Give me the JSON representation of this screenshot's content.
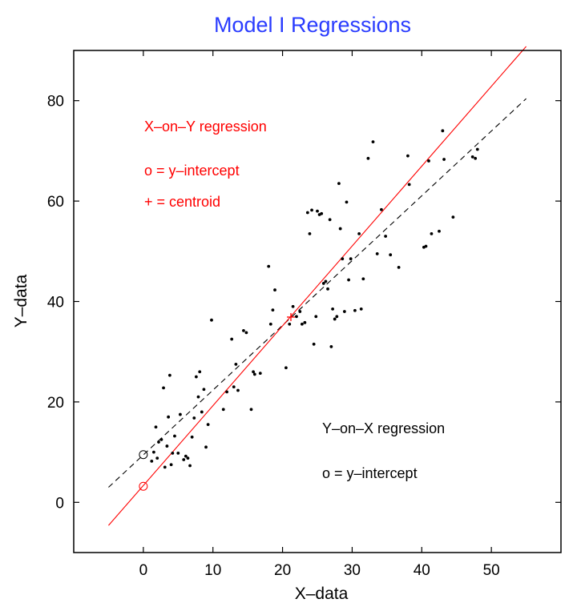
{
  "chart_data": {
    "type": "scatter",
    "title": "Model I Regressions",
    "xlabel": "X–data",
    "ylabel": "Y–data",
    "xlim": [
      -10,
      60
    ],
    "ylim": [
      -10,
      90
    ],
    "xticks": [
      0,
      10,
      20,
      30,
      40,
      50
    ],
    "yticks": [
      0,
      20,
      40,
      60,
      80
    ],
    "grid": false,
    "colors": {
      "title": "#2a3cff",
      "x_on_y": "#ff0000",
      "y_on_x": "#000000",
      "points": "#000000"
    },
    "points": [
      [
        1.2,
        8.2
      ],
      [
        1.5,
        10.0
      ],
      [
        1.8,
        15.0
      ],
      [
        2.0,
        8.8
      ],
      [
        2.2,
        12.0
      ],
      [
        2.6,
        12.5
      ],
      [
        2.9,
        22.8
      ],
      [
        3.1,
        7.0
      ],
      [
        3.4,
        11.2
      ],
      [
        3.6,
        17.0
      ],
      [
        3.8,
        25.3
      ],
      [
        4.0,
        7.5
      ],
      [
        4.2,
        9.8
      ],
      [
        4.5,
        13.2
      ],
      [
        5.0,
        9.8
      ],
      [
        5.3,
        17.5
      ],
      [
        5.8,
        8.5
      ],
      [
        6.1,
        9.2
      ],
      [
        6.4,
        8.8
      ],
      [
        6.7,
        7.3
      ],
      [
        7.0,
        13.0
      ],
      [
        7.3,
        16.8
      ],
      [
        7.6,
        25.0
      ],
      [
        7.9,
        21.0
      ],
      [
        8.1,
        26.0
      ],
      [
        8.4,
        18.0
      ],
      [
        8.7,
        22.5
      ],
      [
        9.0,
        11.0
      ],
      [
        9.3,
        15.5
      ],
      [
        9.8,
        36.3
      ],
      [
        11.5,
        18.5
      ],
      [
        12.0,
        22.0
      ],
      [
        12.7,
        32.5
      ],
      [
        13.0,
        23.0
      ],
      [
        13.3,
        27.5
      ],
      [
        13.6,
        22.3
      ],
      [
        14.4,
        34.2
      ],
      [
        14.8,
        33.8
      ],
      [
        15.5,
        18.5
      ],
      [
        15.8,
        26.0
      ],
      [
        16.0,
        25.5
      ],
      [
        16.8,
        25.7
      ],
      [
        18.0,
        47.0
      ],
      [
        18.3,
        35.5
      ],
      [
        18.6,
        38.3
      ],
      [
        18.9,
        42.3
      ],
      [
        20.5,
        26.8
      ],
      [
        21.0,
        35.5
      ],
      [
        21.5,
        39.0
      ],
      [
        22.0,
        37.0
      ],
      [
        22.5,
        38.0
      ],
      [
        22.8,
        35.5
      ],
      [
        23.2,
        35.8
      ],
      [
        23.6,
        57.7
      ],
      [
        23.9,
        53.5
      ],
      [
        24.2,
        58.2
      ],
      [
        24.5,
        31.5
      ],
      [
        24.8,
        37.0
      ],
      [
        25.0,
        58.0
      ],
      [
        25.3,
        57.3
      ],
      [
        25.6,
        57.5
      ],
      [
        25.9,
        43.6
      ],
      [
        26.2,
        44.0
      ],
      [
        26.5,
        42.5
      ],
      [
        26.8,
        56.3
      ],
      [
        27.0,
        31.0
      ],
      [
        27.2,
        38.5
      ],
      [
        27.5,
        36.5
      ],
      [
        27.8,
        37.0
      ],
      [
        28.1,
        63.5
      ],
      [
        28.3,
        54.5
      ],
      [
        28.6,
        48.5
      ],
      [
        28.9,
        38.0
      ],
      [
        29.2,
        59.8
      ],
      [
        29.5,
        44.3
      ],
      [
        29.8,
        48.5
      ],
      [
        30.4,
        38.2
      ],
      [
        31.0,
        53.5
      ],
      [
        31.3,
        38.5
      ],
      [
        31.6,
        44.5
      ],
      [
        32.3,
        68.5
      ],
      [
        33.0,
        71.8
      ],
      [
        33.6,
        49.5
      ],
      [
        34.2,
        58.3
      ],
      [
        34.8,
        53.0
      ],
      [
        35.5,
        49.3
      ],
      [
        36.7,
        46.8
      ],
      [
        38.0,
        69.0
      ],
      [
        38.2,
        63.3
      ],
      [
        40.3,
        50.8
      ],
      [
        40.6,
        51.0
      ],
      [
        41.0,
        68.0
      ],
      [
        41.4,
        53.5
      ],
      [
        42.5,
        54.0
      ],
      [
        43.0,
        74.0
      ],
      [
        43.2,
        68.3
      ],
      [
        44.5,
        56.8
      ],
      [
        47.3,
        68.8
      ],
      [
        47.7,
        68.5
      ],
      [
        48.0,
        70.3
      ]
    ],
    "x_on_y_line": {
      "x": [
        -5,
        55
      ],
      "y": [
        -4.6,
        90.8
      ]
    },
    "y_on_x_line": {
      "x": [
        -5,
        55
      ],
      "y": [
        3.0,
        80.4
      ]
    },
    "x_on_y_intercept": [
      0,
      3.2
    ],
    "y_on_x_intercept": [
      0,
      9.5
    ],
    "centroid": [
      21.2,
      36.9
    ],
    "annotations": {
      "x_on_y": {
        "line1": "X–on–Y regression",
        "line2": "o  =  y–intercept",
        "line3": "+  =  centroid"
      },
      "y_on_x": {
        "line1": "Y–on–X regression",
        "line2": "o  =  y–intercept"
      }
    }
  }
}
